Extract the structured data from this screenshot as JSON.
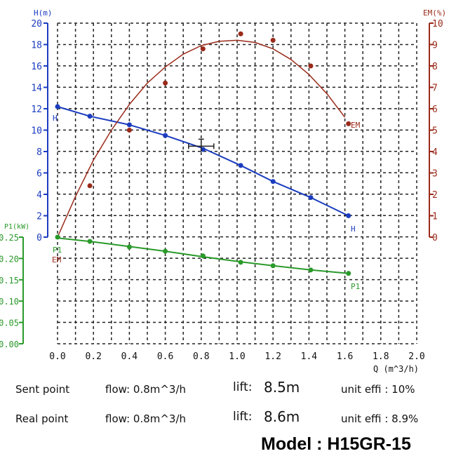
{
  "chart_data": {
    "type": "line",
    "title": "",
    "xlabel": "Q (m^3/h)",
    "xlim": [
      0,
      2.0
    ],
    "x_ticks": [
      "0.0",
      "0.2",
      "0.4",
      "0.6",
      "0.8",
      "1.0",
      "1.2",
      "1.4",
      "1.6",
      "1.8",
      "2.0"
    ],
    "axes": {
      "H": {
        "label": "H(m)",
        "range": [
          0,
          20
        ],
        "ticks": [
          "0",
          "2",
          "4",
          "6",
          "8",
          "10",
          "12",
          "14",
          "16",
          "18",
          "20"
        ],
        "color": "#1a3cbf"
      },
      "EM": {
        "label": "EM(%)",
        "range": [
          0,
          10
        ],
        "ticks": [
          "0",
          "1",
          "2",
          "3",
          "4",
          "5",
          "6",
          "7",
          "8",
          "9",
          "10"
        ],
        "color": "#9a2a1a"
      },
      "P1": {
        "label": "P1(kW)",
        "range": [
          0,
          0.25
        ],
        "ticks": [
          "0.00",
          "0.05",
          "0.10",
          "0.15",
          "0.20",
          "0.25"
        ],
        "color": "#2a9a2a"
      }
    },
    "grid": true,
    "series": [
      {
        "name": "H",
        "axis": "H",
        "color": "#1a3cbf",
        "x": [
          0,
          0.18,
          0.4,
          0.6,
          0.81,
          1.02,
          1.2,
          1.41,
          1.62
        ],
        "points": [
          12.2,
          11.3,
          10.5,
          9.5,
          8.2,
          6.7,
          5.2,
          3.7,
          2.0
        ],
        "fit": [
          12.2,
          11.3,
          10.5,
          9.5,
          8.3,
          6.7,
          5.2,
          3.7,
          2.0
        ]
      },
      {
        "name": "EM",
        "axis": "EM",
        "color": "#9a2a1a",
        "x": [
          0.18,
          0.4,
          0.6,
          0.81,
          1.02,
          1.2,
          1.41,
          1.62
        ],
        "points": [
          2.4,
          5.0,
          7.2,
          8.8,
          9.5,
          9.2,
          8.0,
          5.3
        ],
        "fit_x": [
          0,
          0.1,
          0.2,
          0.3,
          0.4,
          0.5,
          0.6,
          0.7,
          0.8,
          0.9,
          1.0,
          1.1,
          1.2,
          1.3,
          1.4,
          1.5,
          1.6
        ],
        "fit": [
          0,
          1.9,
          3.6,
          5.0,
          6.2,
          7.2,
          7.95,
          8.55,
          8.95,
          9.15,
          9.2,
          9.1,
          8.8,
          8.3,
          7.6,
          6.7,
          5.6
        ]
      },
      {
        "name": "P1",
        "axis": "P1",
        "color": "#2a9a2a",
        "x": [
          0,
          0.18,
          0.4,
          0.6,
          0.81,
          1.02,
          1.2,
          1.41,
          1.62
        ],
        "points": [
          0.25,
          0.24,
          0.227,
          0.217,
          0.206,
          0.191,
          0.183,
          0.173,
          0.165
        ],
        "fit": [
          0.248,
          0.24,
          0.228,
          0.217,
          0.204,
          0.192,
          0.183,
          0.173,
          0.165
        ]
      }
    ],
    "series_labels": {
      "H_start": "H",
      "H_end": "H",
      "EM_start": "EM",
      "EM_end": "EM",
      "P1_start": "P1",
      "P1_end": "P1"
    },
    "marker": {
      "name": "sent point",
      "x": 0.8,
      "y": 8.5,
      "axis": "H"
    }
  },
  "info": {
    "sent": {
      "label": "Sent point",
      "flow": "flow: 0.8m^3/h",
      "lift_label": "lift:",
      "lift": "8.5m",
      "effi": "unit effi : 10%"
    },
    "real": {
      "label": "Real point",
      "flow": "flow: 0.8m^3/h",
      "lift_label": "lift:",
      "lift": "8.6m",
      "effi": "unit effi : 8.9%"
    },
    "model": "Model : H15GR-15"
  }
}
